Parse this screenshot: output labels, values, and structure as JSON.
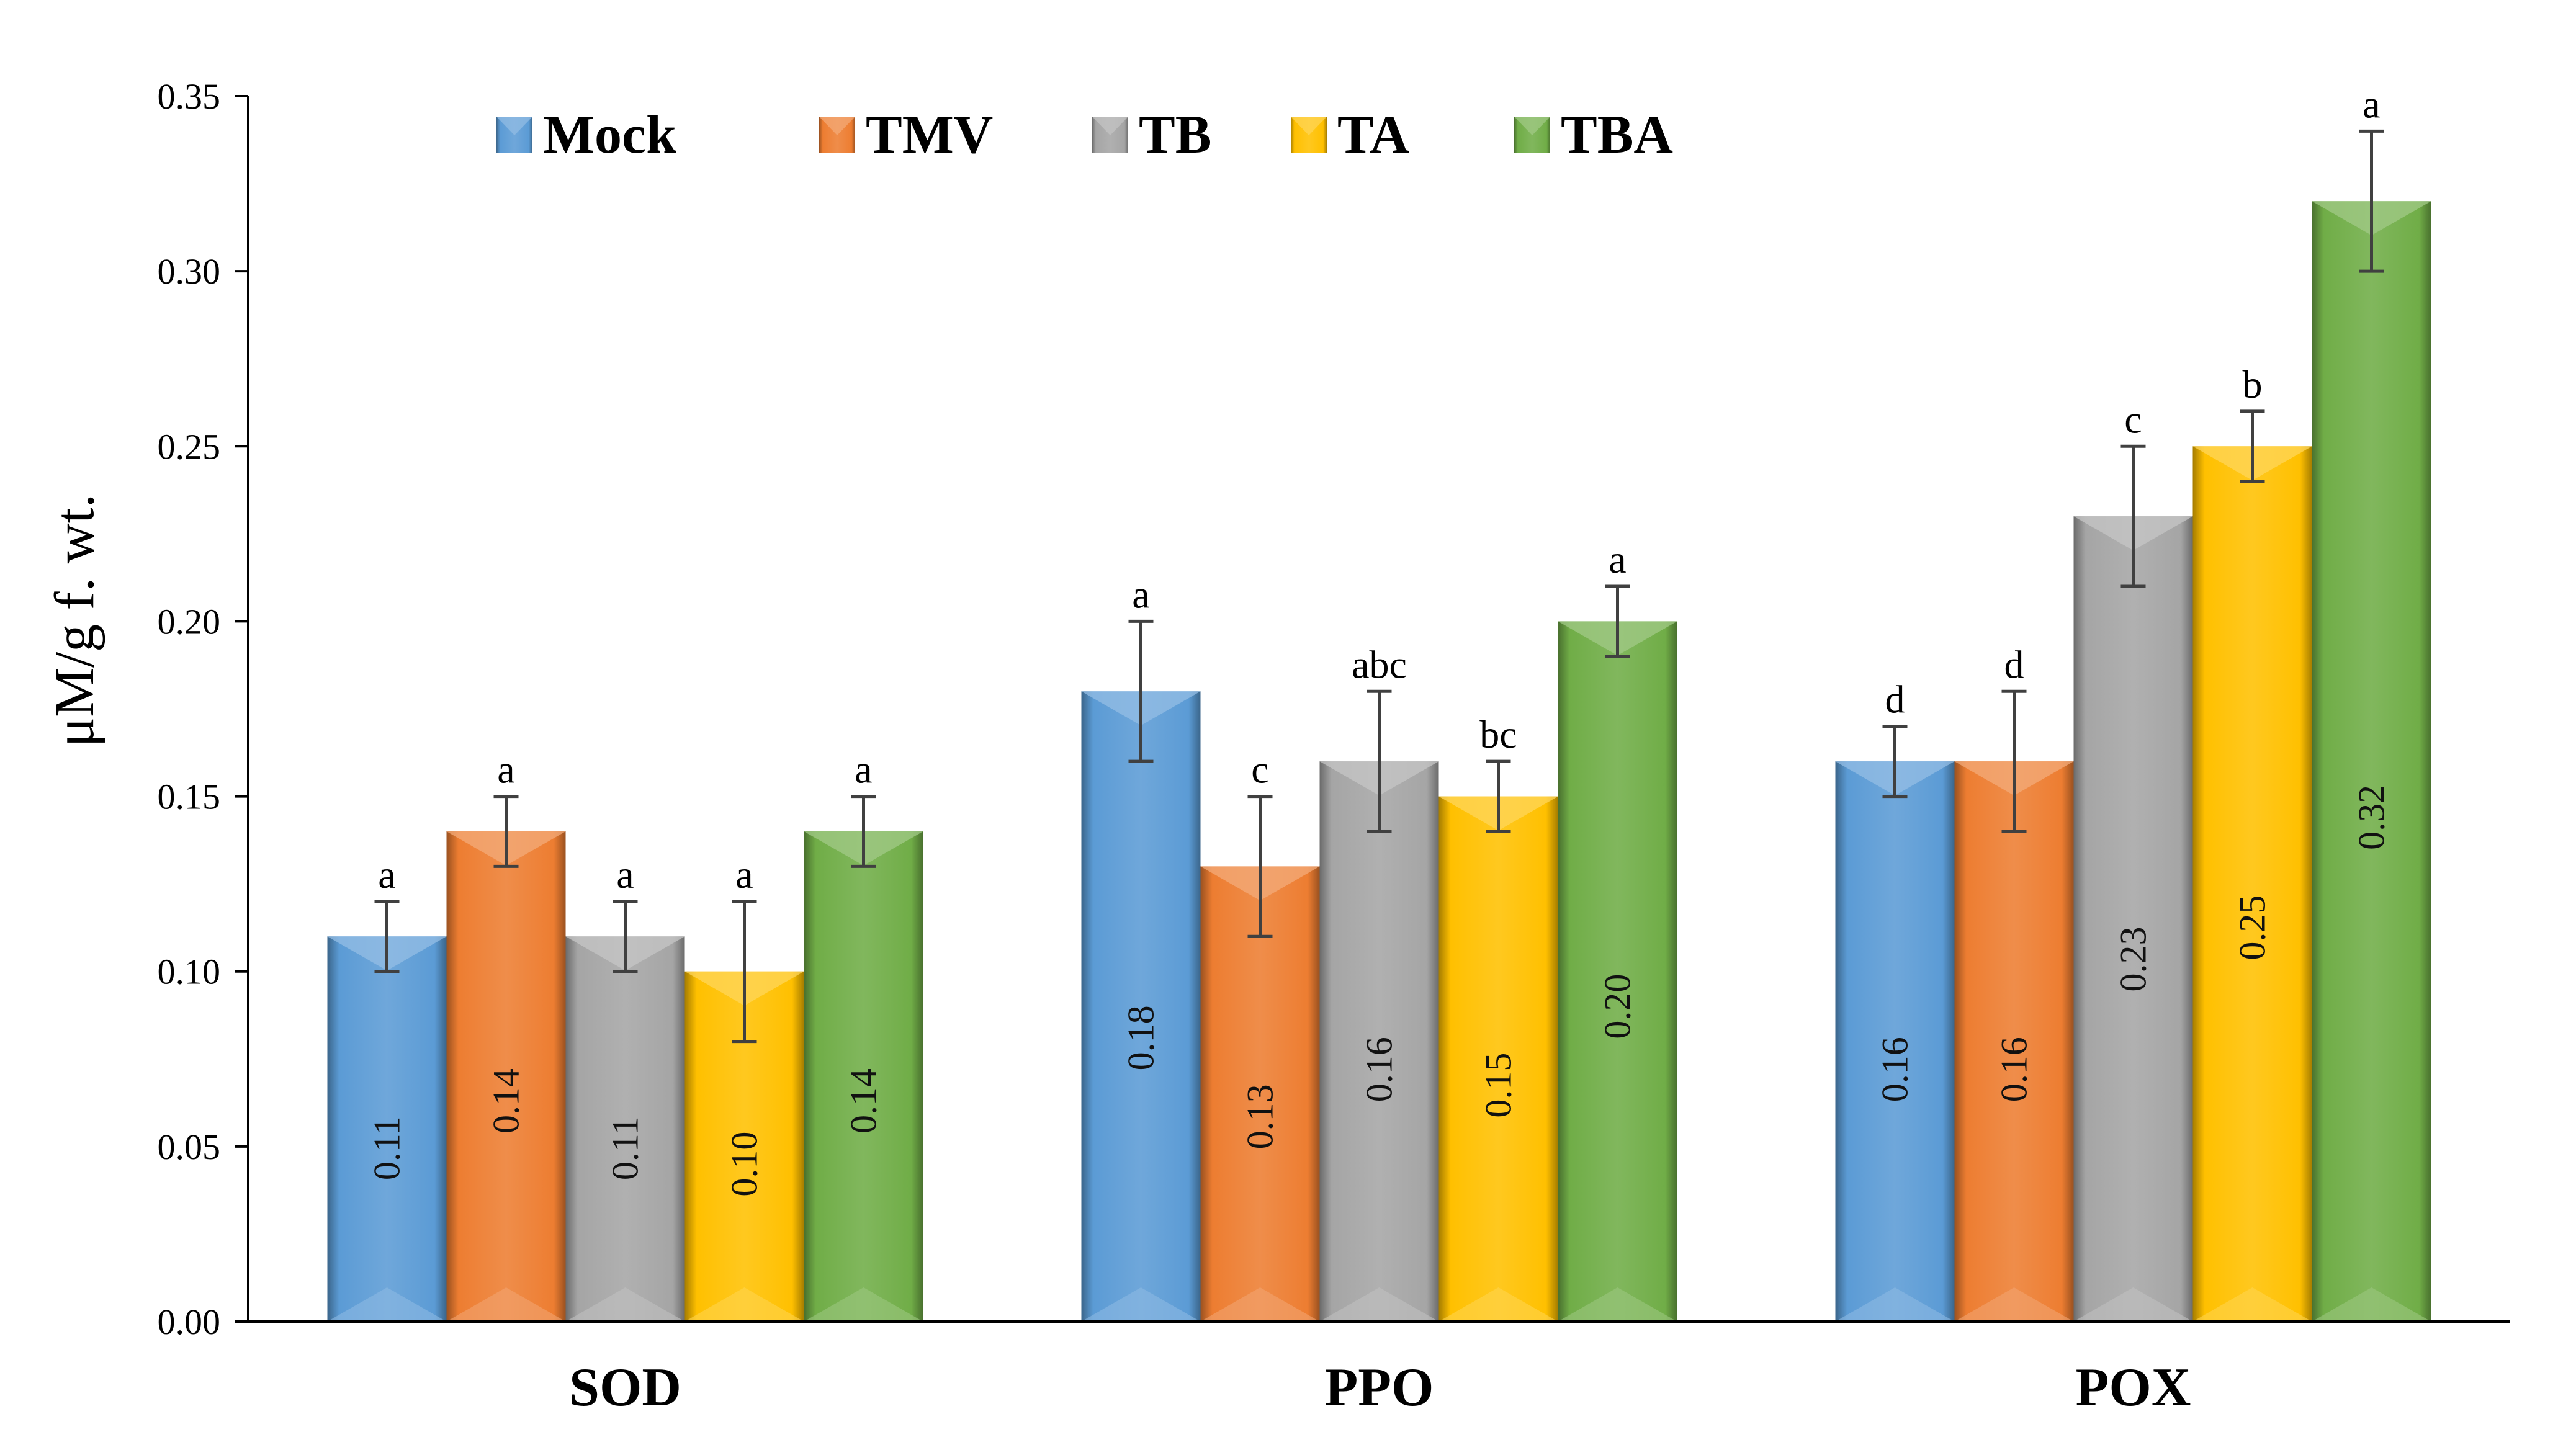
{
  "chart_data": {
    "type": "bar",
    "title": "",
    "xlabel": "",
    "ylabel": "μM/g f. wt.",
    "ylim": [
      0,
      0.35
    ],
    "yticks": [
      "0.00",
      "0.05",
      "0.10",
      "0.15",
      "0.20",
      "0.25",
      "0.30",
      "0.35"
    ],
    "categories": [
      "SOD",
      "PPO",
      "POX"
    ],
    "legend_position": "top-left",
    "series": [
      {
        "name": "Mock",
        "color": "#5b9bd5",
        "values": [
          0.11,
          0.18,
          0.16
        ],
        "errors": [
          0.01,
          0.02,
          0.01
        ],
        "value_labels": [
          "0.11",
          "0.18",
          "0.16"
        ],
        "letters": [
          "a",
          "a",
          "d"
        ]
      },
      {
        "name": "TMV",
        "color": "#ed7d31",
        "values": [
          0.14,
          0.13,
          0.16
        ],
        "errors": [
          0.01,
          0.02,
          0.02
        ],
        "value_labels": [
          "0.14",
          "0.13",
          "0.16"
        ],
        "letters": [
          "a",
          "c",
          "d"
        ]
      },
      {
        "name": "TB",
        "color": "#a5a5a5",
        "values": [
          0.11,
          0.16,
          0.23
        ],
        "errors": [
          0.01,
          0.02,
          0.02
        ],
        "value_labels": [
          "0.11",
          "0.16",
          "0.23"
        ],
        "letters": [
          "a",
          "abc",
          "c"
        ]
      },
      {
        "name": "TA",
        "color": "#ffc000",
        "values": [
          0.1,
          0.15,
          0.25
        ],
        "errors": [
          0.02,
          0.01,
          0.01
        ],
        "value_labels": [
          "0.10",
          "0.15",
          "0.25"
        ],
        "letters": [
          "a",
          "bc",
          "b"
        ]
      },
      {
        "name": "TBA",
        "color": "#70ad47",
        "values": [
          0.14,
          0.2,
          0.32
        ],
        "errors": [
          0.01,
          0.01,
          0.02
        ],
        "value_labels": [
          "0.14",
          "0.20",
          "0.32"
        ],
        "letters": [
          "a",
          "a",
          "a"
        ]
      }
    ]
  }
}
